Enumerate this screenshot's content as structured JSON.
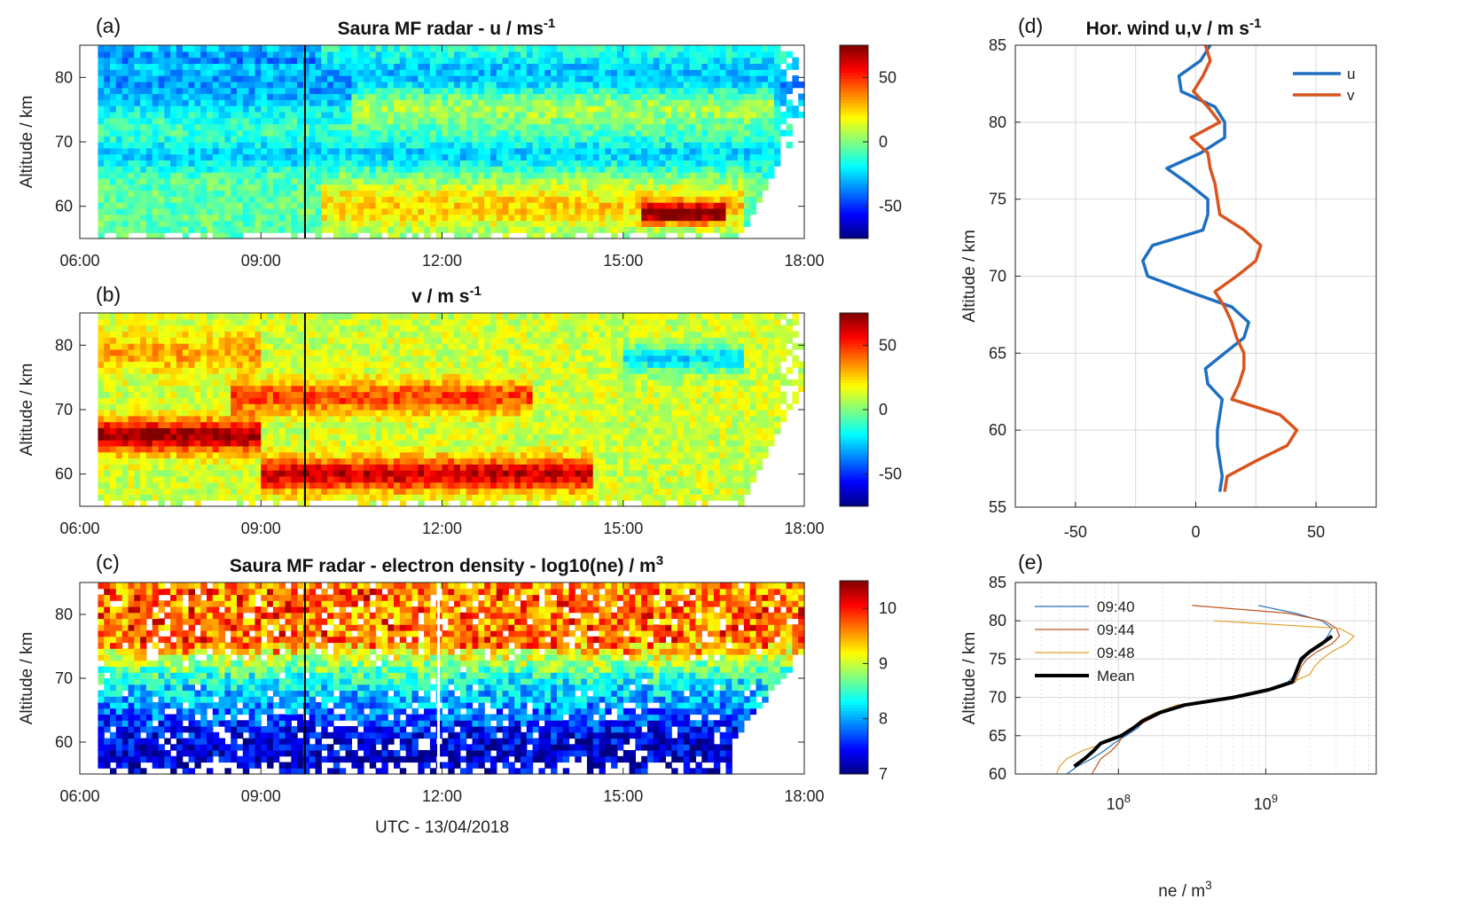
{
  "chart_data": [
    {
      "panel": "(a)",
      "type": "heatmap",
      "title": "Saura MF radar - u / ms",
      "title_superscript": "-1",
      "xlabel": "",
      "ylabel": "Altitude / km",
      "xticks": [
        "06:00",
        "09:00",
        "12:00",
        "15:00",
        "18:00"
      ],
      "xlim_hours": [
        6,
        18
      ],
      "ylim": [
        55,
        85
      ],
      "yticks": [
        60,
        70,
        80
      ],
      "marker_time_hours": 9.73,
      "colorbar": {
        "min": -75,
        "max": 75,
        "ticks": [
          -50,
          0,
          50
        ]
      },
      "features": [
        {
          "t0": 6.3,
          "t1": 18,
          "alt": 79,
          "width": 5,
          "value": -28,
          "t_edge": 6.3
        },
        {
          "t0": 10.5,
          "t1": 17.5,
          "alt": 76,
          "width": 3,
          "value": 28,
          "t_edge": 6.3
        },
        {
          "t0": 6.3,
          "t1": 18,
          "alt": 68,
          "width": 2.5,
          "value": -20,
          "t_edge": 6.3
        },
        {
          "t0": 10.0,
          "t1": 17.0,
          "alt": 60,
          "width": 4,
          "value": 30,
          "t_edge": 6.3
        },
        {
          "t0": 15.3,
          "t1": 16.7,
          "alt": 59,
          "width": 1.5,
          "value": 60,
          "t_edge": 15.3
        }
      ]
    },
    {
      "panel": "(b)",
      "type": "heatmap",
      "title": "v / m s",
      "title_superscript": "-1",
      "xlabel": "",
      "ylabel": "Altitude / km",
      "xticks": [
        "06:00",
        "09:00",
        "12:00",
        "15:00",
        "18:00"
      ],
      "xlim_hours": [
        6,
        18
      ],
      "ylim": [
        55,
        85
      ],
      "yticks": [
        60,
        70,
        80
      ],
      "marker_time_hours": 9.73,
      "colorbar": {
        "min": -75,
        "max": 75,
        "ticks": [
          -50,
          0,
          50
        ]
      },
      "features": [
        {
          "t0": 6.3,
          "t1": 9.0,
          "alt": 66,
          "width": 2.5,
          "value": 60,
          "t_edge": 6.3
        },
        {
          "t0": 9.0,
          "t1": 14.5,
          "alt": 60,
          "width": 2.5,
          "value": 52,
          "t_edge": 9.0
        },
        {
          "t0": 8.5,
          "t1": 13.5,
          "alt": 72,
          "width": 2.5,
          "value": 35,
          "t_edge": 8.5
        },
        {
          "t0": 6.3,
          "t1": 9.0,
          "alt": 79,
          "width": 3,
          "value": 20,
          "t_edge": 6.3
        },
        {
          "t0": 15.0,
          "t1": 17.0,
          "alt": 78,
          "width": 2,
          "value": -35,
          "t_edge": 15.0
        }
      ]
    },
    {
      "panel": "(c)",
      "type": "heatmap",
      "title": "Saura MF radar - electron density - log10(ne) / m",
      "title_superscript": "3",
      "xlabel": "UTC - 13/04/2018",
      "ylabel": "Altitude / km",
      "xticks": [
        "06:00",
        "09:00",
        "12:00",
        "15:00",
        "18:00"
      ],
      "xlim_hours": [
        6,
        18
      ],
      "ylim": [
        55,
        85
      ],
      "yticks": [
        60,
        70,
        80
      ],
      "marker_time_hours": 9.73,
      "colorbar": {
        "min": 7,
        "max": 10.5,
        "ticks": [
          7,
          8,
          9,
          10
        ]
      },
      "features": []
    },
    {
      "panel": "(d)",
      "type": "line",
      "title": "Hor. wind u,v / m s",
      "title_superscript": "-1",
      "xlabel": "",
      "ylabel": "Altitude / km",
      "xlim": [
        -75,
        75
      ],
      "xticks": [
        -50,
        0,
        50
      ],
      "ylim": [
        55,
        85
      ],
      "yticks": [
        55,
        60,
        65,
        70,
        75,
        80,
        85
      ],
      "legend_position": "top-right",
      "series": [
        {
          "name": "u",
          "color": "#1f6fc0",
          "alt": [
            56,
            57,
            58,
            59,
            60,
            61,
            62,
            63,
            64,
            65,
            66,
            67,
            68,
            69,
            70,
            71,
            72,
            73,
            74,
            75,
            76,
            77,
            78,
            79,
            80,
            81,
            82,
            83,
            84,
            85
          ],
          "values": [
            10,
            11,
            10,
            9,
            9,
            10,
            11,
            5,
            4,
            12,
            20,
            22,
            15,
            -3,
            -20,
            -22,
            -18,
            3,
            5,
            5,
            -3,
            -12,
            2,
            12,
            12,
            8,
            -6,
            -7,
            2,
            6
          ]
        },
        {
          "name": "v",
          "color": "#d9541e",
          "alt": [
            56,
            57,
            58,
            59,
            60,
            61,
            62,
            63,
            64,
            65,
            66,
            67,
            68,
            69,
            70,
            71,
            72,
            73,
            74,
            75,
            76,
            77,
            78,
            79,
            80,
            81,
            82,
            83,
            84,
            85
          ],
          "values": [
            12,
            13,
            25,
            38,
            42,
            35,
            15,
            18,
            20,
            20,
            17,
            15,
            12,
            8,
            17,
            25,
            27,
            20,
            10,
            9,
            8,
            6,
            5,
            -2,
            10,
            5,
            -1,
            3,
            6,
            4
          ]
        }
      ]
    },
    {
      "panel": "(e)",
      "type": "line",
      "title": "",
      "xlabel": "ne / m",
      "xlabel_superscript": "3",
      "ylabel": "Altitude / km",
      "xscale": "log",
      "xlim_log10": [
        7.3,
        9.75
      ],
      "xticks_log10": [
        8,
        9
      ],
      "xtick_labels": [
        "10",
        "10"
      ],
      "xtick_superscripts": [
        "8",
        "9"
      ],
      "ylim": [
        60,
        85
      ],
      "yticks": [
        60,
        65,
        70,
        75,
        80,
        85
      ],
      "legend_position": "top-left",
      "series": [
        {
          "name": "09:40",
          "color": "#1f6fc0",
          "width": 1.2,
          "alt": [
            60,
            61,
            62,
            63,
            64,
            65,
            66,
            67,
            68,
            69,
            70,
            71,
            72,
            73,
            74,
            75,
            76,
            77,
            78,
            79,
            80,
            81,
            82
          ],
          "log_ne": [
            7.65,
            7.72,
            7.82,
            7.9,
            7.97,
            8.05,
            8.13,
            8.18,
            8.25,
            8.4,
            8.75,
            9.0,
            9.15,
            9.2,
            9.22,
            9.26,
            9.3,
            9.38,
            9.42,
            9.45,
            9.38,
            9.2,
            8.95
          ]
        },
        {
          "name": "09:44",
          "color": "#c0561d",
          "width": 1.2,
          "alt": [
            60,
            61,
            62,
            63,
            64,
            65,
            66,
            67,
            68,
            69,
            70,
            71,
            72,
            73,
            74,
            75,
            76,
            77,
            78,
            79,
            80,
            81,
            82
          ],
          "log_ne": [
            7.82,
            7.85,
            7.88,
            7.95,
            8.0,
            8.03,
            8.1,
            8.2,
            8.3,
            8.45,
            8.8,
            9.05,
            9.2,
            9.22,
            9.24,
            9.28,
            9.35,
            9.45,
            9.5,
            9.48,
            9.4,
            9.15,
            8.5
          ]
        },
        {
          "name": "09:48",
          "color": "#e0a22a",
          "width": 1.2,
          "alt": [
            60,
            61,
            62,
            63,
            64,
            65,
            66,
            67,
            68,
            69,
            70,
            71,
            72,
            73,
            74,
            75,
            76,
            77,
            78,
            79,
            80
          ],
          "log_ne": [
            7.58,
            7.6,
            7.65,
            7.75,
            7.9,
            8.0,
            8.1,
            8.15,
            8.25,
            8.4,
            8.78,
            9.02,
            9.18,
            9.3,
            9.33,
            9.38,
            9.45,
            9.55,
            9.6,
            9.5,
            8.65
          ]
        },
        {
          "name": "Mean",
          "color": "#000000",
          "width": 4,
          "alt": [
            61,
            62,
            63,
            64,
            65,
            66,
            67,
            68,
            69,
            70,
            71,
            72,
            73,
            74,
            75,
            76,
            77,
            78
          ],
          "log_ne": [
            7.7,
            7.77,
            7.83,
            7.88,
            8.02,
            8.1,
            8.17,
            8.28,
            8.45,
            8.78,
            9.02,
            9.18,
            9.2,
            9.22,
            9.24,
            9.3,
            9.38,
            9.45
          ]
        }
      ]
    }
  ]
}
